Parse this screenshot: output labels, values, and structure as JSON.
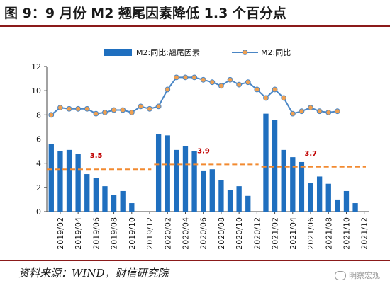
{
  "header": {
    "title": "图 9：9 月份 M2 翘尾因素降低 1.3 个百分点"
  },
  "footer": {
    "source": "资料来源：WIND，财信研究院",
    "watermark": "明察宏观"
  },
  "colors": {
    "bar": "#1f6fbf",
    "line": "#4a86c5",
    "marker_fill": "#f0a050",
    "dash": "#f28a30",
    "annotation": "#c00000",
    "title_rule": "#8b1a1a"
  },
  "chart_data": {
    "type": "bar+line",
    "title": "",
    "xlabel": "",
    "ylabel": "",
    "ylim": [
      0,
      12
    ],
    "yticks": [
      0,
      2,
      4,
      6,
      8,
      10,
      12
    ],
    "grid": false,
    "legend_position": "top",
    "x_tick_labels": [
      "2019/02",
      "2019/04",
      "2019/06",
      "2019/08",
      "2019/10",
      "2019/12",
      "2020/02",
      "2020/04",
      "2020/06",
      "2020/08",
      "2020/10",
      "2020/12",
      "2021/02",
      "2021/04",
      "2021/06",
      "2021/08",
      "2021/10",
      "2021/12"
    ],
    "categories": [
      "2019/01",
      "2019/02",
      "2019/03",
      "2019/04",
      "2019/05",
      "2019/06",
      "2019/07",
      "2019/08",
      "2019/09",
      "2019/10",
      "2019/11",
      "2019/12",
      "2020/01",
      "2020/02",
      "2020/03",
      "2020/04",
      "2020/05",
      "2020/06",
      "2020/07",
      "2020/08",
      "2020/09",
      "2020/10",
      "2020/11",
      "2020/12",
      "2021/01",
      "2021/02",
      "2021/03",
      "2021/04",
      "2021/05",
      "2021/06",
      "2021/07",
      "2021/08",
      "2021/09",
      "2021/10",
      "2021/11",
      "2021/12"
    ],
    "series": [
      {
        "name": "M2:同比:翘尾因素",
        "kind": "bar",
        "values": [
          5.6,
          5.0,
          5.1,
          4.8,
          3.1,
          2.8,
          2.1,
          1.4,
          1.7,
          0.7,
          null,
          null,
          6.4,
          6.3,
          5.1,
          5.4,
          5.0,
          3.4,
          3.5,
          2.6,
          1.8,
          2.1,
          1.3,
          null,
          8.1,
          7.6,
          5.1,
          4.5,
          4.1,
          2.4,
          2.9,
          2.3,
          1.0,
          1.7,
          0.7,
          null
        ]
      },
      {
        "name": "M2:同比",
        "kind": "line",
        "values": [
          8.0,
          8.6,
          8.5,
          8.5,
          8.5,
          8.1,
          8.2,
          8.4,
          8.4,
          8.2,
          8.7,
          8.5,
          8.7,
          10.1,
          11.1,
          11.1,
          11.1,
          10.9,
          10.7,
          10.4,
          10.9,
          10.5,
          10.7,
          10.1,
          9.4,
          10.1,
          9.4,
          8.1,
          8.3,
          8.6,
          8.3,
          8.2,
          8.3,
          null,
          null,
          null
        ]
      }
    ],
    "annotations": [
      {
        "label": "3.5",
        "value": 3.5,
        "from": "2019/01",
        "to": "2019/12"
      },
      {
        "label": "3.9",
        "value": 3.9,
        "from": "2020/01",
        "to": "2020/12"
      },
      {
        "label": "3.7",
        "value": 3.7,
        "from": "2021/01",
        "to": "2021/12"
      }
    ]
  }
}
